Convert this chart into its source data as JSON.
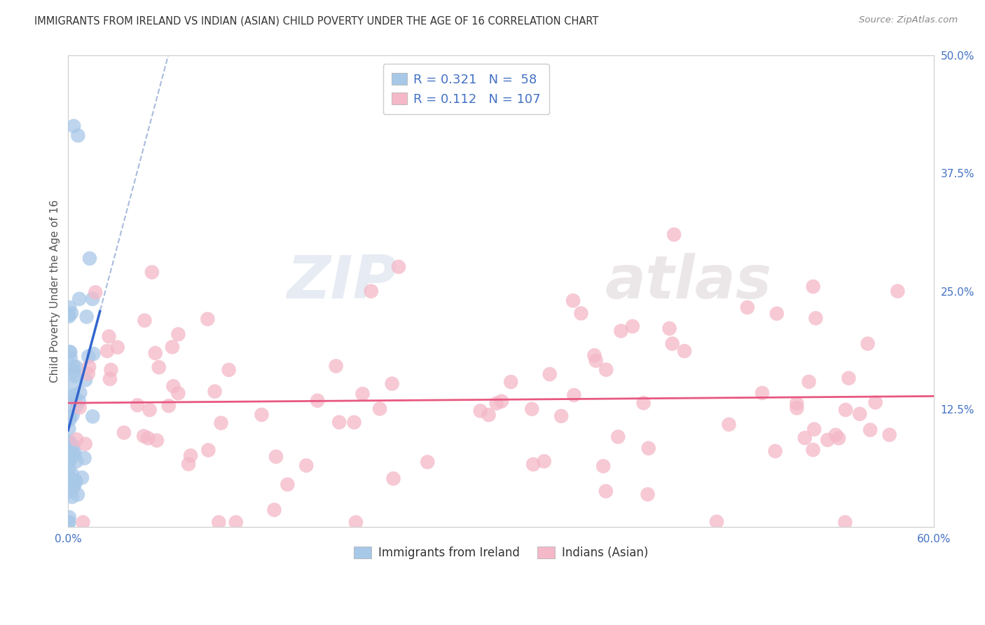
{
  "title": "IMMIGRANTS FROM IRELAND VS INDIAN (ASIAN) CHILD POVERTY UNDER THE AGE OF 16 CORRELATION CHART",
  "source": "Source: ZipAtlas.com",
  "ylabel": "Child Poverty Under the Age of 16",
  "xlim": [
    0.0,
    0.6
  ],
  "ylim": [
    0.0,
    0.5
  ],
  "blue_color": "#a8c8e8",
  "pink_color": "#f4b8c8",
  "blue_line_color": "#3366cc",
  "blue_dash_color": "#aabbdd",
  "pink_line_color": "#e85880",
  "grid_color": "#cccccc",
  "watermark_z": "ZIP",
  "watermark_a": "atlas",
  "legend_blue_r": "0.321",
  "legend_blue_n": "58",
  "legend_pink_r": "0.112",
  "legend_pink_n": "107",
  "legend_label_blue": "Immigrants from Ireland",
  "legend_label_pink": "Indians (Asian)"
}
